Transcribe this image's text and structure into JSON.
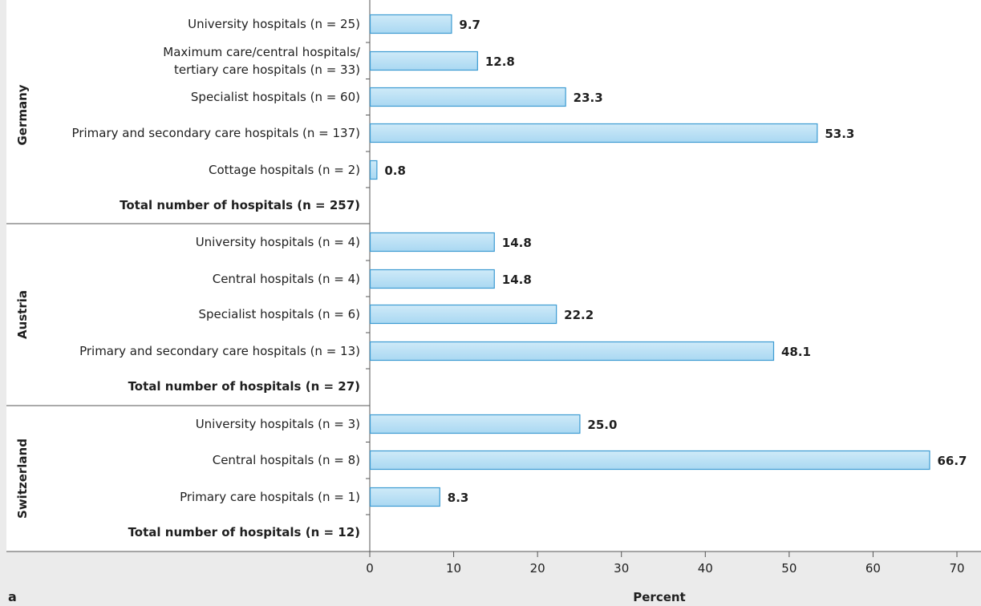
{
  "chart_data": {
    "type": "bar",
    "orientation": "horizontal",
    "xlabel": "Percent",
    "xlim": [
      0,
      70
    ],
    "xticks": [
      "0",
      "10",
      "20",
      "30",
      "40",
      "50",
      "60",
      "70"
    ],
    "panel_label": "a",
    "grid": false,
    "groups": [
      {
        "name": "Germany",
        "rows": [
          {
            "label": "University hospitals (n = 25)",
            "value": 9.7,
            "value_label": "9.7"
          },
          {
            "label": "Maximum care/central hospitals/\ntertiary care hospitals (n = 33)",
            "value": 12.8,
            "value_label": "12.8"
          },
          {
            "label": "Specialist hospitals (n = 60)",
            "value": 23.3,
            "value_label": "23.3"
          },
          {
            "label": "Primary and secondary care hospitals (n = 137)",
            "value": 53.3,
            "value_label": "53.3"
          },
          {
            "label": "Cottage hospitals (n = 2)",
            "value": 0.8,
            "value_label": "0.8"
          },
          {
            "label": "Total number of hospitals (n = 257)",
            "value": null,
            "value_label": "",
            "bold": true
          }
        ]
      },
      {
        "name": "Austria",
        "rows": [
          {
            "label": "University hospitals (n = 4)",
            "value": 14.8,
            "value_label": "14.8"
          },
          {
            "label": "Central hospitals (n = 4)",
            "value": 14.8,
            "value_label": "14.8"
          },
          {
            "label": "Specialist hospitals (n = 6)",
            "value": 22.2,
            "value_label": "22.2"
          },
          {
            "label": "Primary and secondary care hospitals (n = 13)",
            "value": 48.1,
            "value_label": "48.1"
          },
          {
            "label": "Total number of hospitals (n = 27)",
            "value": null,
            "value_label": "",
            "bold": true
          }
        ]
      },
      {
        "name": "Switzerland",
        "rows": [
          {
            "label": "University hospitals (n = 3)",
            "value": 25.0,
            "value_label": "25.0"
          },
          {
            "label": "Central hospitals (n = 8)",
            "value": 66.7,
            "value_label": "66.7"
          },
          {
            "label": "Primary care hospitals (n = 1)",
            "value": 8.3,
            "value_label": "8.3"
          },
          {
            "label": "Total number of hospitals (n = 12)",
            "value": null,
            "value_label": "",
            "bold": true
          }
        ]
      }
    ],
    "colors": {
      "plot_background": "#ffffff",
      "outer_background": "#ebebeb",
      "bar_fill_top": "#cfeaf8",
      "bar_fill_bottom": "#a9d8f2",
      "bar_stroke": "#3c9bd2",
      "axis": "#555555",
      "text": "#1f1f1f"
    }
  }
}
